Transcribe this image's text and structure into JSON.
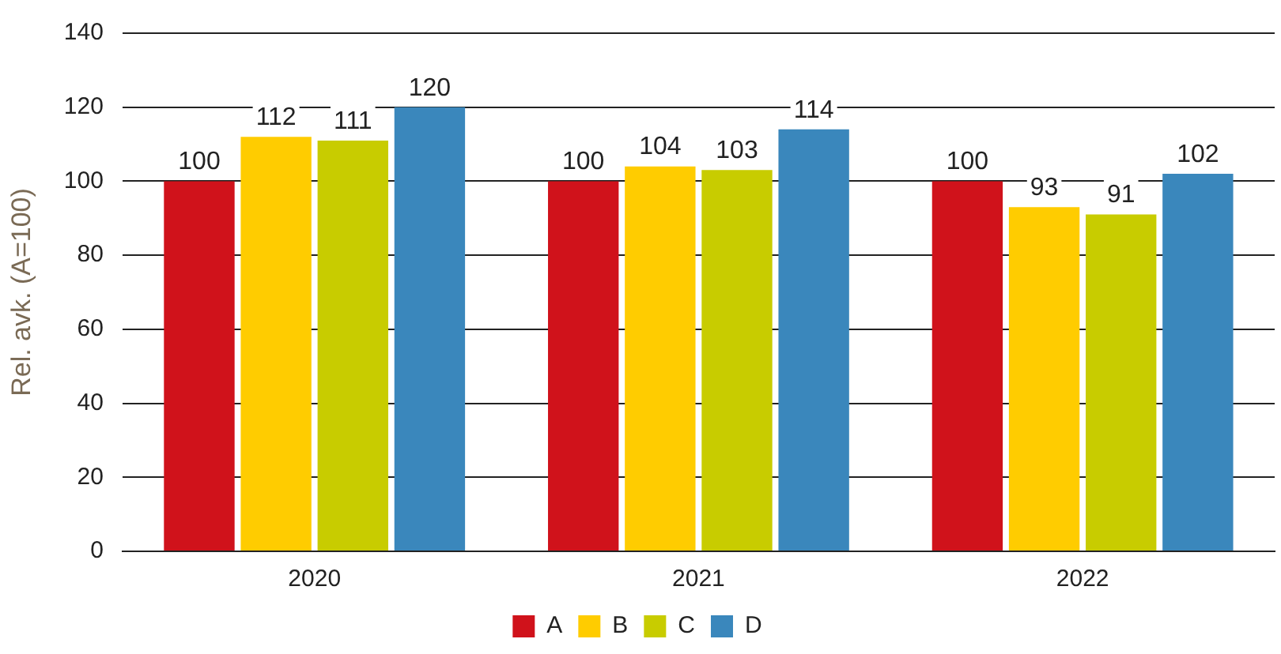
{
  "chart_data": {
    "type": "bar",
    "ylabel": "Rel. avk. (A=100)",
    "categories": [
      "2020",
      "2021",
      "2022"
    ],
    "series": [
      {
        "name": "A",
        "color": "#d0121b",
        "values": [
          100,
          100,
          100
        ]
      },
      {
        "name": "B",
        "color": "#ffcc00",
        "values": [
          112,
          104,
          93
        ]
      },
      {
        "name": "C",
        "color": "#c8cc00",
        "values": [
          111,
          103,
          91
        ]
      },
      {
        "name": "D",
        "color": "#3a87bc",
        "values": [
          120,
          114,
          102
        ]
      }
    ],
    "ylim": [
      0,
      140
    ],
    "yticks": [
      0,
      20,
      40,
      60,
      80,
      100,
      120,
      140
    ],
    "grid": "y",
    "legend": "bottom",
    "data_labels": true
  }
}
